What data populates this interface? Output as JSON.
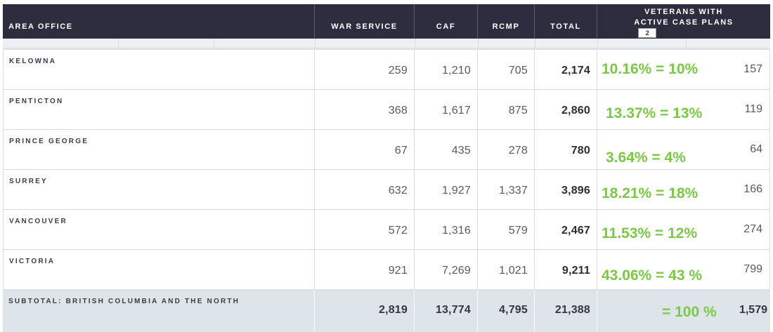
{
  "header": {
    "area_office": "AREA OFFICE",
    "war_service": "WAR SERVICE",
    "caf": "CAF",
    "rcmp": "RCMP",
    "total": "TOTAL",
    "veterans_line1": "VETERANS WITH",
    "veterans_line2": "ACTIVE CASE PLANS",
    "footnote": "2"
  },
  "rows": [
    {
      "area": "KELOWNA",
      "war_service": "259",
      "caf": "1,210",
      "rcmp": "705",
      "total": "2,174",
      "annotation": "10.16% = 10%",
      "veterans": "157"
    },
    {
      "area": "PENTICTON",
      "war_service": "368",
      "caf": "1,617",
      "rcmp": "875",
      "total": "2,860",
      "annotation": "13.37% = 13%",
      "veterans": "119"
    },
    {
      "area": "PRINCE GEORGE",
      "war_service": "67",
      "caf": "435",
      "rcmp": "278",
      "total": "780",
      "annotation": "3.64% = 4%",
      "veterans": "64"
    },
    {
      "area": "SURREY",
      "war_service": "632",
      "caf": "1,927",
      "rcmp": "1,337",
      "total": "3,896",
      "annotation": "18.21% = 18%",
      "veterans": "166"
    },
    {
      "area": "VANCOUVER",
      "war_service": "572",
      "caf": "1,316",
      "rcmp": "579",
      "total": "2,467",
      "annotation": "11.53% = 12%",
      "veterans": "274"
    },
    {
      "area": "VICTORIA",
      "war_service": "921",
      "caf": "7,269",
      "rcmp": "1,021",
      "total": "9,211",
      "annotation": "43.06% = 43 %",
      "veterans": "799"
    }
  ],
  "subtotal": {
    "label": "SUBTOTAL: BRITISH COLUMBIA AND THE NORTH",
    "war_service": "2,819",
    "caf": "13,774",
    "rcmp": "4,795",
    "total": "21,388",
    "annotation": "= 100 %",
    "veterans": "1,579"
  },
  "colors": {
    "header_bg": "#2d2d3f",
    "annotation_green": "#7ac943",
    "subtotal_bg": "#dde5ea"
  }
}
